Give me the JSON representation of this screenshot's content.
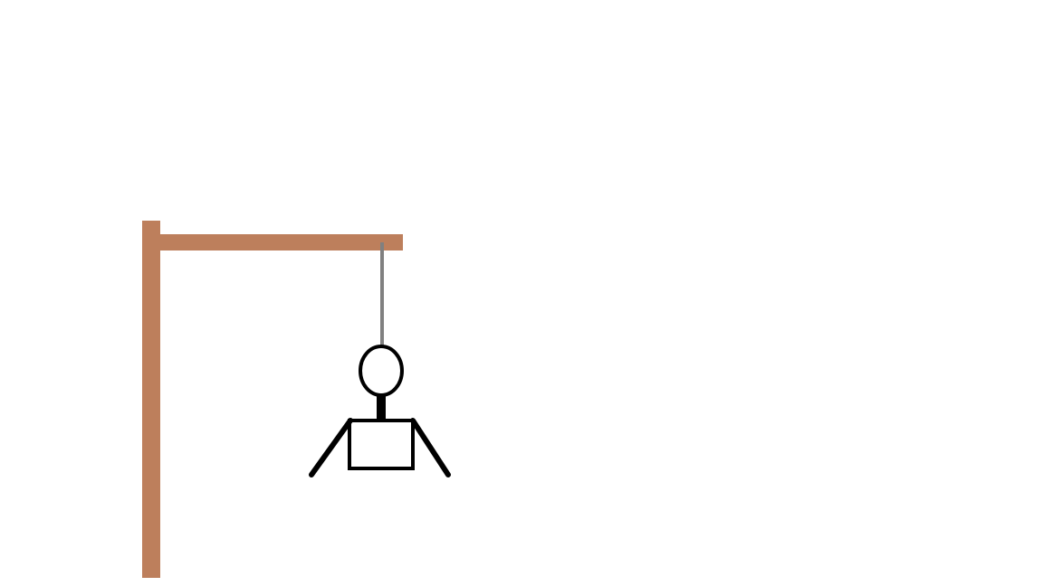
{
  "game": {
    "type": "hangman",
    "parts_shown": [
      "gallows",
      "rope",
      "head",
      "neck",
      "torso",
      "left-arm",
      "right-arm"
    ],
    "parts_hidden": [
      "left-leg",
      "right-leg"
    ]
  },
  "colors": {
    "background": "#ffffff",
    "gallows": "#bd7f5c",
    "rope": "#808080",
    "figure": "#000000",
    "figure_fill": "#ffffff"
  }
}
